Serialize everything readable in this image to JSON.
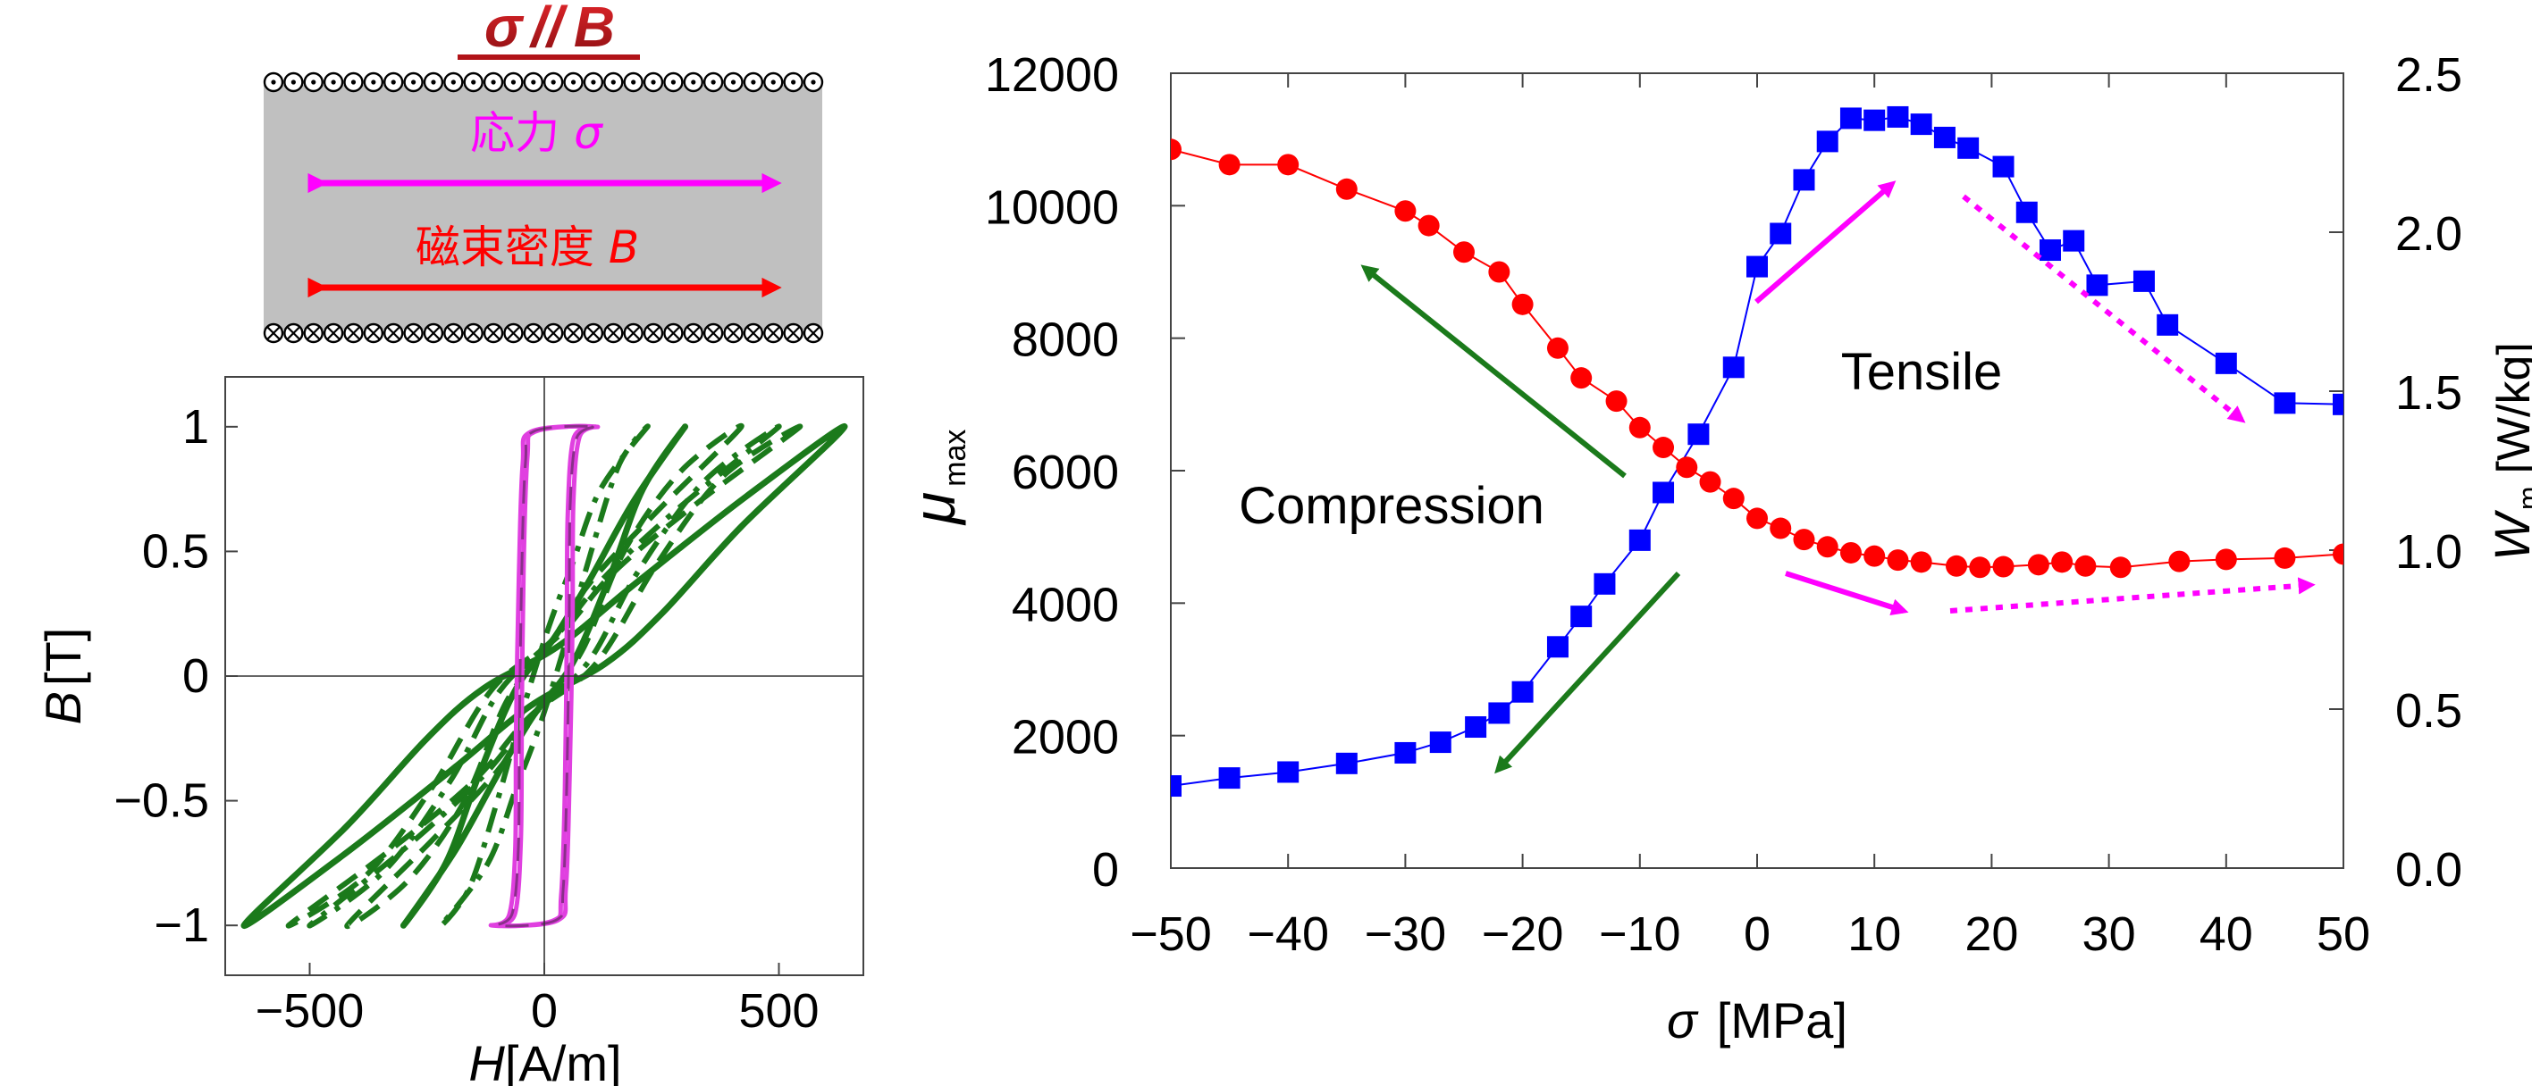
{
  "diagram": {
    "title_sigma": "σ",
    "title_par": "//",
    "title_b": "B",
    "stress_label": "応力",
    "stress_symbol": "σ",
    "flux_label": "磁束密度",
    "flux_symbol": "B"
  },
  "chart_data": [
    {
      "type": "line",
      "title": "",
      "xlabel_var": "H",
      "xlabel_unit": "[A/m]",
      "ylabel_var": "B",
      "ylabel_unit": "[T]",
      "xlim": [
        -680,
        680
      ],
      "ylim": [
        -1.2,
        1.2
      ],
      "x_ticks": [
        {
          "value": -500,
          "label": "−500"
        },
        {
          "value": 0,
          "label": "0"
        },
        {
          "value": 500,
          "label": "500"
        }
      ],
      "y_ticks": [
        {
          "value": -1,
          "label": "−1"
        },
        {
          "value": -0.5,
          "label": "−0.5"
        },
        {
          "value": 0,
          "label": "0"
        },
        {
          "value": 0.5,
          "label": "0.5"
        },
        {
          "value": 1,
          "label": "1"
        }
      ],
      "grid": false,
      "zero_lines": true,
      "series": [
        {
          "color": "#1b7a1b",
          "dash": "solid",
          "width": 7,
          "loop": [
            [
              640,
              1.0
            ],
            [
              430,
              0.72
            ],
            [
              200,
              0.38
            ],
            [
              30,
              0.12
            ],
            [
              -130,
              -0.05
            ],
            [
              -250,
              -0.25
            ],
            [
              -420,
              -0.6
            ],
            [
              -640,
              -1.0
            ],
            [
              -430,
              -0.72
            ],
            [
              -200,
              -0.38
            ],
            [
              -30,
              -0.12
            ],
            [
              130,
              0.05
            ],
            [
              250,
              0.25
            ],
            [
              420,
              0.6
            ]
          ]
        },
        {
          "color": "#1b7a1b",
          "dash": "solid",
          "width": 7,
          "loop": [
            [
              300,
              1.0
            ],
            [
              190,
              0.7
            ],
            [
              95,
              0.38
            ],
            [
              20,
              0.15
            ],
            [
              -60,
              -0.05
            ],
            [
              -140,
              -0.4
            ],
            [
              -210,
              -0.75
            ],
            [
              -300,
              -1.0
            ],
            [
              -190,
              -0.7
            ],
            [
              -95,
              -0.38
            ],
            [
              -20,
              -0.15
            ],
            [
              60,
              0.05
            ],
            [
              140,
              0.4
            ],
            [
              210,
              0.75
            ]
          ]
        },
        {
          "color": "#1b7a1b",
          "dash": "dashed",
          "width": 6,
          "loop": [
            [
              545,
              1.0
            ],
            [
              330,
              0.7
            ],
            [
              150,
              0.42
            ],
            [
              30,
              0.16
            ],
            [
              -110,
              -0.05
            ],
            [
              -240,
              -0.45
            ],
            [
              -380,
              -0.8
            ],
            [
              -545,
              -1.0
            ],
            [
              -330,
              -0.7
            ],
            [
              -150,
              -0.42
            ],
            [
              -30,
              -0.16
            ],
            [
              110,
              0.05
            ],
            [
              240,
              0.45
            ],
            [
              380,
              0.8
            ]
          ]
        },
        {
          "color": "#1b7a1b",
          "dash": "dashdot",
          "width": 6,
          "loop": [
            [
              500,
              1.0
            ],
            [
              290,
              0.68
            ],
            [
              130,
              0.4
            ],
            [
              25,
              0.16
            ],
            [
              -95,
              -0.06
            ],
            [
              -200,
              -0.42
            ],
            [
              -340,
              -0.78
            ],
            [
              -500,
              -1.0
            ],
            [
              -290,
              -0.68
            ],
            [
              -130,
              -0.4
            ],
            [
              -25,
              -0.16
            ],
            [
              95,
              0.06
            ],
            [
              200,
              0.42
            ],
            [
              340,
              0.78
            ]
          ]
        },
        {
          "color": "#1b7a1b",
          "dash": "dashed",
          "width": 6,
          "loop": [
            [
              420,
              1.0
            ],
            [
              240,
              0.66
            ],
            [
              100,
              0.38
            ],
            [
              15,
              0.14
            ],
            [
              -80,
              -0.1
            ],
            [
              -170,
              -0.5
            ],
            [
              -290,
              -0.82
            ],
            [
              -420,
              -1.0
            ],
            [
              -240,
              -0.66
            ],
            [
              -100,
              -0.38
            ],
            [
              -15,
              -0.14
            ],
            [
              80,
              0.1
            ],
            [
              170,
              0.5
            ],
            [
              290,
              0.82
            ]
          ]
        },
        {
          "color": "#1b7a1b",
          "dash": "dashdot",
          "width": 6,
          "loop": [
            [
              220,
              1.0
            ],
            [
              120,
              0.75
            ],
            [
              60,
              0.45
            ],
            [
              10,
              0.2
            ],
            [
              -40,
              -0.1
            ],
            [
              -100,
              -0.5
            ],
            [
              -160,
              -0.85
            ],
            [
              -220,
              -1.0
            ],
            [
              -120,
              -0.75
            ],
            [
              -60,
              -0.45
            ],
            [
              -10,
              -0.2
            ],
            [
              40,
              0.1
            ],
            [
              100,
              0.5
            ],
            [
              160,
              0.85
            ]
          ]
        },
        {
          "color": "#e040e0",
          "dash": "solid",
          "width": 5,
          "loop": [
            [
              110,
              1.0
            ],
            [
              75,
              0.96
            ],
            [
              62,
              0.7
            ],
            [
              60,
              0.2
            ],
            [
              54,
              -0.4
            ],
            [
              46,
              -0.85
            ],
            [
              28,
              -0.98
            ],
            [
              -110,
              -1.0
            ],
            [
              -75,
              -0.96
            ],
            [
              -62,
              -0.7
            ],
            [
              -60,
              -0.2
            ],
            [
              -54,
              0.4
            ],
            [
              -46,
              0.85
            ],
            [
              -28,
              0.98
            ]
          ]
        },
        {
          "color": "#e040e0",
          "dash": "solid",
          "width": 5,
          "loop": [
            [
              95,
              1.0
            ],
            [
              62,
              0.95
            ],
            [
              50,
              0.65
            ],
            [
              48,
              0.15
            ],
            [
              44,
              -0.45
            ],
            [
              36,
              -0.88
            ],
            [
              20,
              -0.98
            ],
            [
              -95,
              -1.0
            ],
            [
              -62,
              -0.95
            ],
            [
              -50,
              -0.65
            ],
            [
              -48,
              -0.15
            ],
            [
              -44,
              0.45
            ],
            [
              -36,
              0.88
            ],
            [
              -20,
              0.98
            ]
          ]
        },
        {
          "color": "#8a2f8a",
          "dash": "dashed",
          "width": 3,
          "loop": [
            [
              100,
              1.0
            ],
            [
              68,
              0.95
            ],
            [
              55,
              0.68
            ],
            [
              53,
              0.2
            ],
            [
              48,
              -0.42
            ],
            [
              40,
              -0.86
            ],
            [
              24,
              -0.98
            ],
            [
              -100,
              -1.0
            ],
            [
              -68,
              -0.95
            ],
            [
              -55,
              -0.68
            ],
            [
              -53,
              -0.2
            ],
            [
              -48,
              0.42
            ],
            [
              -40,
              0.86
            ],
            [
              -24,
              0.98
            ]
          ]
        }
      ]
    },
    {
      "type": "line",
      "title": "",
      "xlabel_var": "σ",
      "xlabel_unit": "[MPa]",
      "ylabel_var": "μ",
      "ylabel_sub": "max",
      "y2label_var": "W",
      "y2label_sub": "m",
      "y2label_unit": "[W/kg]",
      "xlim": [
        -50,
        50
      ],
      "ylim": [
        0,
        12000
      ],
      "y2lim": [
        0.0,
        2.5
      ],
      "x_ticks": [
        {
          "value": -50,
          "label": "−50"
        },
        {
          "value": -40,
          "label": "−40"
        },
        {
          "value": -30,
          "label": "−30"
        },
        {
          "value": -20,
          "label": "−20"
        },
        {
          "value": -10,
          "label": "−10"
        },
        {
          "value": 0,
          "label": "0"
        },
        {
          "value": 10,
          "label": "10"
        },
        {
          "value": 20,
          "label": "20"
        },
        {
          "value": 30,
          "label": "30"
        },
        {
          "value": 40,
          "label": "40"
        },
        {
          "value": 50,
          "label": "50"
        }
      ],
      "y_ticks": [
        {
          "value": 0,
          "label": "0"
        },
        {
          "value": 2000,
          "label": "2000"
        },
        {
          "value": 4000,
          "label": "4000"
        },
        {
          "value": 6000,
          "label": "6000"
        },
        {
          "value": 8000,
          "label": "8000"
        },
        {
          "value": 10000,
          "label": "10000"
        },
        {
          "value": 12000,
          "label": "12000"
        }
      ],
      "y2_ticks": [
        {
          "value": 0.0,
          "label": "0.0"
        },
        {
          "value": 0.5,
          "label": "0.5"
        },
        {
          "value": 1.0,
          "label": "1.0"
        },
        {
          "value": 1.5,
          "label": "1.5"
        },
        {
          "value": 2.0,
          "label": "2.0"
        },
        {
          "value": 2.5,
          "label": "2.5"
        }
      ],
      "grid": false,
      "series": [
        {
          "marker": "circle",
          "color": "#ff0000",
          "axis": "left",
          "x": [
            -50,
            -45,
            -40,
            -35,
            -30,
            -28,
            -25,
            -22,
            -20,
            -17,
            -15,
            -12,
            -10,
            -8,
            -6,
            -4,
            -2,
            0,
            2,
            4,
            6,
            8,
            10,
            12,
            14,
            17,
            19,
            21,
            24,
            26,
            28,
            31,
            36,
            40,
            45,
            50
          ],
          "y": [
            10850,
            10620,
            10620,
            10250,
            9920,
            9700,
            9300,
            9000,
            8510,
            7850,
            7400,
            7050,
            6650,
            6350,
            6050,
            5830,
            5580,
            5280,
            5130,
            4960,
            4850,
            4760,
            4710,
            4650,
            4620,
            4560,
            4540,
            4550,
            4580,
            4620,
            4560,
            4540,
            4630,
            4660,
            4680,
            4740
          ]
        },
        {
          "marker": "square",
          "color": "#0000ff",
          "axis": "left",
          "x": [
            -50,
            -45,
            -40,
            -35,
            -30,
            -27,
            -24,
            -22,
            -20,
            -17,
            -15,
            -13,
            -10,
            -8,
            -5,
            -2,
            0,
            2,
            4,
            6,
            8,
            10,
            12,
            14,
            16,
            18,
            21,
            23,
            25,
            27,
            29,
            33,
            35,
            40,
            45,
            50
          ],
          "y": [
            1240,
            1360,
            1450,
            1580,
            1740,
            1900,
            2130,
            2340,
            2660,
            3340,
            3800,
            4290,
            4950,
            5670,
            6550,
            7560,
            9080,
            9580,
            10390,
            10970,
            11320,
            11290,
            11340,
            11230,
            11030,
            10870,
            10590,
            9900,
            9330,
            9470,
            8800,
            8860,
            8200,
            7620,
            7020,
            7000
          ]
        }
      ],
      "annotations": {
        "tensile": "Tensile",
        "compression": "Compression"
      }
    }
  ]
}
